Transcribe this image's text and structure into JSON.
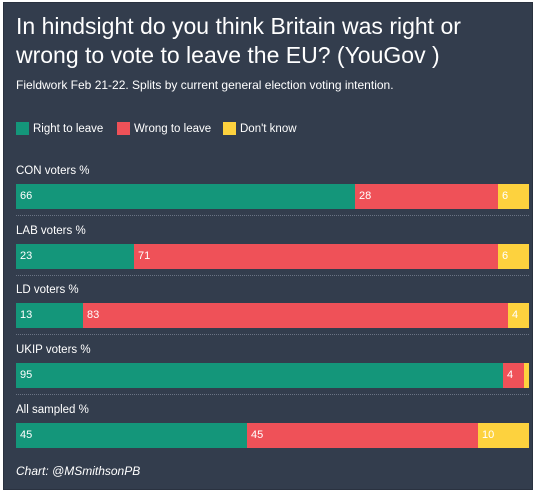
{
  "chart_data": {
    "type": "bar",
    "orientation": "horizontal",
    "stacked": true,
    "title": "In hindsight do you think Britain was right or wrong to vote to leave the EU? (YouGov )",
    "subtitle": "Fieldwork Feb 21-22. Splits by current general election voting intention.",
    "categories": [
      "CON voters %",
      "LAB voters %",
      "LD voters %",
      "UKIP voters %",
      "All sampled %"
    ],
    "series": [
      {
        "name": "Right to leave",
        "color": "#14967a",
        "values": [
          66,
          23,
          13,
          95,
          45
        ],
        "labels": [
          "66",
          "23",
          "13",
          "95",
          "45"
        ]
      },
      {
        "name": "Wrong to leave",
        "color": "#ef5158",
        "values": [
          28,
          71,
          83,
          4,
          45
        ],
        "labels": [
          "28",
          "71",
          "83",
          "4",
          "45"
        ]
      },
      {
        "name": "Don't know",
        "color": "#fdd23e",
        "values": [
          6,
          6,
          4,
          1,
          10
        ],
        "labels": [
          "6",
          "6",
          "4",
          "",
          "10"
        ]
      }
    ],
    "xlim": [
      0,
      100
    ],
    "grid": false,
    "legend_position": "top-left",
    "source": "Chart: @MSmithsonPB"
  }
}
